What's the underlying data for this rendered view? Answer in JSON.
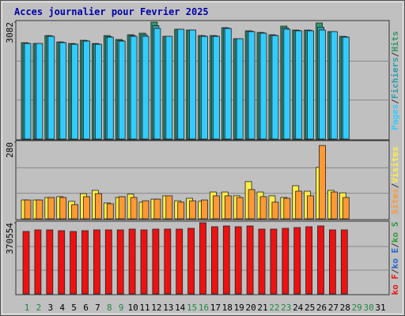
{
  "title": "Acces journalier pour Fevrier 2025",
  "separator": "/",
  "chart_data": [
    {
      "type": "bar",
      "ylim": [
        0,
        3082
      ],
      "yticks": [
        3082
      ],
      "grid": true,
      "series": [
        {
          "name": "Pages",
          "color": "#33ccff",
          "values": [
            2519,
            2519,
            2707,
            2540,
            2498,
            2582,
            2498,
            2686,
            2582,
            2707,
            2707,
            2915,
            2707,
            2894,
            2873,
            2707,
            2707,
            2915,
            2644,
            2832,
            2790,
            2728,
            2894,
            2853,
            2853,
            2873,
            2832,
            2686,
            null,
            null,
            null
          ]
        },
        {
          "name": "Fichiers",
          "color": "#2a9fb0",
          "values": [
            2530,
            2519,
            2718,
            2550,
            2508,
            2592,
            2508,
            2700,
            2600,
            2728,
            2749,
            2990,
            2707,
            2894,
            2873,
            2718,
            2718,
            2925,
            2644,
            2842,
            2800,
            2738,
            2930,
            2863,
            2863,
            2950,
            2832,
            2696,
            null,
            null,
            null
          ]
        },
        {
          "name": "Hits",
          "color": "#339966",
          "values": [
            2540,
            2519,
            2728,
            2561,
            2519,
            2603,
            2519,
            2728,
            2624,
            2749,
            2790,
            3082,
            2707,
            2894,
            2873,
            2728,
            2728,
            2936,
            2644,
            2853,
            2811,
            2749,
            2977,
            2873,
            2873,
            3061,
            2832,
            2707,
            null,
            null,
            null
          ]
        }
      ]
    },
    {
      "type": "bar",
      "ylim": [
        0,
        280
      ],
      "yticks": [
        280
      ],
      "grid": true,
      "series": [
        {
          "name": "Sites",
          "color": "#ff9933",
          "values": [
            69,
            69,
            78,
            78,
            52,
            81,
            92,
            55,
            81,
            78,
            66,
            72,
            84,
            61,
            66,
            69,
            84,
            84,
            78,
            107,
            81,
            61,
            75,
            101,
            84,
            268,
            98,
            78,
            null,
            null,
            null
          ]
        },
        {
          "name": "Visites",
          "color": "#ffee44",
          "values": [
            69,
            69,
            78,
            81,
            64,
            92,
            104,
            58,
            78,
            90,
            61,
            72,
            84,
            66,
            75,
            64,
            98,
            98,
            84,
            136,
            98,
            84,
            78,
            121,
            101,
            188,
            104,
            95,
            null,
            null,
            null
          ]
        }
      ]
    },
    {
      "type": "bar",
      "ylim": [
        0,
        370554
      ],
      "yticks": [
        370554
      ],
      "grid": true,
      "categories": [
        "1",
        "2",
        "3",
        "4",
        "5",
        "6",
        "7",
        "8",
        "9",
        "10",
        "11",
        "12",
        "13",
        "14",
        "15",
        "16",
        "17",
        "18",
        "19",
        "20",
        "21",
        "22",
        "23",
        "24",
        "25",
        "26",
        "27",
        "28",
        "29",
        "30",
        "31"
      ],
      "category_colors": [
        "#228844",
        "#228844",
        "#000000",
        "#000000",
        "#000000",
        "#000000",
        "#000000",
        "#228844",
        "#228844",
        "#000000",
        "#000000",
        "#000000",
        "#000000",
        "#000000",
        "#228844",
        "#228844",
        "#000000",
        "#000000",
        "#000000",
        "#000000",
        "#000000",
        "#228844",
        "#228844",
        "#000000",
        "#000000",
        "#000000",
        "#000000",
        "#000000",
        "#228844",
        "#228844",
        "#000000"
      ],
      "series": [
        {
          "name": "ko F",
          "color": "#ee1111",
          "values": [
            325267,
            333500,
            333500,
            329384,
            325267,
            329384,
            333500,
            333500,
            333500,
            337619,
            333500,
            337619,
            337619,
            337619,
            341736,
            370554,
            349971,
            354088,
            349971,
            354088,
            337619,
            337619,
            341736,
            345853,
            349971,
            354088,
            333500,
            333500,
            null,
            null,
            null
          ]
        },
        {
          "name": "ko E",
          "color": "#2266cc"
        },
        {
          "name": "ko S",
          "color": "#339933"
        }
      ]
    }
  ]
}
